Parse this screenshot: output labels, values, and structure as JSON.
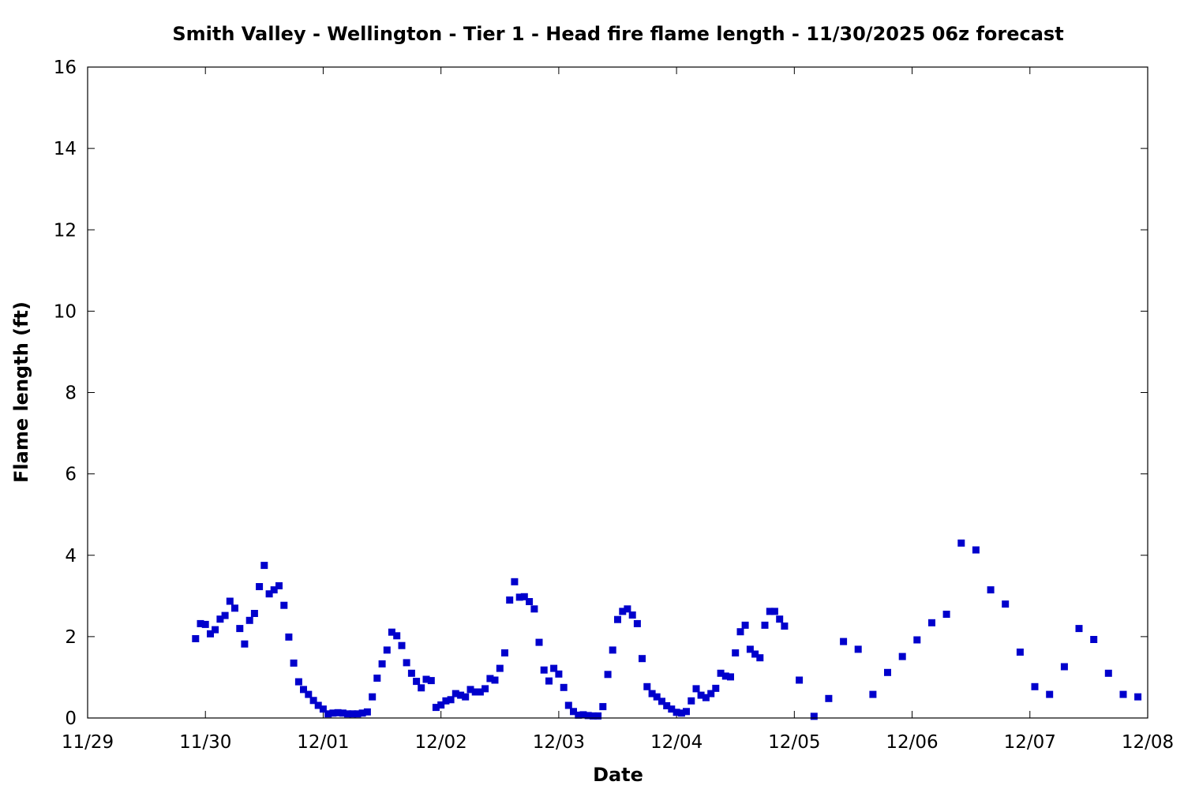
{
  "chart_data": {
    "type": "scatter",
    "title": "Smith Valley - Wellington - Tier 1 - Head fire flame length - 11/30/2025 06z forecast",
    "xlabel": "Date",
    "ylabel": "Flame length (ft)",
    "x_unit": "days since 11/29 00z",
    "xlim": [
      0,
      9
    ],
    "ylim": [
      0,
      16
    ],
    "x_tick_values": [
      0,
      1,
      2,
      3,
      4,
      5,
      6,
      7,
      8,
      9
    ],
    "x_tick_labels": [
      "11/29",
      "11/30",
      "12/01",
      "12/02",
      "12/03",
      "12/04",
      "12/05",
      "12/06",
      "12/07",
      "12/08"
    ],
    "y_tick_values": [
      0,
      2,
      4,
      6,
      8,
      10,
      12,
      14,
      16
    ],
    "y_tick_labels": [
      "0",
      "2",
      "4",
      "6",
      "8",
      "10",
      "12",
      "14",
      "16"
    ],
    "grid": false,
    "marker_color": "#0000cc",
    "series": [
      {
        "name": "Head fire flame length",
        "points": [
          [
            0.917,
            1.95
          ],
          [
            0.958,
            2.32
          ],
          [
            1.0,
            2.3
          ],
          [
            1.042,
            2.07
          ],
          [
            1.083,
            2.17
          ],
          [
            1.125,
            2.43
          ],
          [
            1.167,
            2.52
          ],
          [
            1.208,
            2.87
          ],
          [
            1.25,
            2.7
          ],
          [
            1.292,
            2.2
          ],
          [
            1.333,
            1.82
          ],
          [
            1.375,
            2.4
          ],
          [
            1.417,
            2.57
          ],
          [
            1.458,
            3.23
          ],
          [
            1.5,
            3.75
          ],
          [
            1.542,
            3.05
          ],
          [
            1.583,
            3.15
          ],
          [
            1.625,
            3.25
          ],
          [
            1.667,
            2.77
          ],
          [
            1.708,
            1.99
          ],
          [
            1.75,
            1.35
          ],
          [
            1.792,
            0.89
          ],
          [
            1.833,
            0.7
          ],
          [
            1.875,
            0.58
          ],
          [
            1.917,
            0.43
          ],
          [
            1.958,
            0.31
          ],
          [
            2.0,
            0.22
          ],
          [
            2.042,
            0.1
          ],
          [
            2.083,
            0.12
          ],
          [
            2.125,
            0.13
          ],
          [
            2.167,
            0.12
          ],
          [
            2.208,
            0.1
          ],
          [
            2.25,
            0.1
          ],
          [
            2.292,
            0.1
          ],
          [
            2.333,
            0.12
          ],
          [
            2.375,
            0.15
          ],
          [
            2.417,
            0.52
          ],
          [
            2.458,
            0.98
          ],
          [
            2.5,
            1.33
          ],
          [
            2.542,
            1.67
          ],
          [
            2.583,
            2.11
          ],
          [
            2.625,
            2.02
          ],
          [
            2.667,
            1.78
          ],
          [
            2.708,
            1.36
          ],
          [
            2.75,
            1.1
          ],
          [
            2.792,
            0.9
          ],
          [
            2.833,
            0.74
          ],
          [
            2.875,
            0.95
          ],
          [
            2.917,
            0.92
          ],
          [
            2.958,
            0.26
          ],
          [
            3.0,
            0.32
          ],
          [
            3.042,
            0.42
          ],
          [
            3.083,
            0.45
          ],
          [
            3.125,
            0.6
          ],
          [
            3.167,
            0.56
          ],
          [
            3.208,
            0.52
          ],
          [
            3.25,
            0.7
          ],
          [
            3.292,
            0.64
          ],
          [
            3.333,
            0.64
          ],
          [
            3.375,
            0.72
          ],
          [
            3.417,
            0.97
          ],
          [
            3.458,
            0.93
          ],
          [
            3.5,
            1.22
          ],
          [
            3.542,
            1.6
          ],
          [
            3.583,
            2.9
          ],
          [
            3.625,
            3.35
          ],
          [
            3.667,
            2.97
          ],
          [
            3.708,
            2.98
          ],
          [
            3.75,
            2.86
          ],
          [
            3.792,
            2.68
          ],
          [
            3.833,
            1.86
          ],
          [
            3.875,
            1.18
          ],
          [
            3.917,
            0.91
          ],
          [
            3.958,
            1.22
          ],
          [
            4.0,
            1.08
          ],
          [
            4.042,
            0.75
          ],
          [
            4.083,
            0.31
          ],
          [
            4.125,
            0.16
          ],
          [
            4.167,
            0.07
          ],
          [
            4.208,
            0.08
          ],
          [
            4.25,
            0.06
          ],
          [
            4.292,
            0.05
          ],
          [
            4.333,
            0.05
          ],
          [
            4.375,
            0.28
          ],
          [
            4.417,
            1.07
          ],
          [
            4.458,
            1.67
          ],
          [
            4.5,
            2.42
          ],
          [
            4.542,
            2.62
          ],
          [
            4.583,
            2.68
          ],
          [
            4.625,
            2.53
          ],
          [
            4.667,
            2.32
          ],
          [
            4.708,
            1.46
          ],
          [
            4.75,
            0.77
          ],
          [
            4.792,
            0.6
          ],
          [
            4.833,
            0.52
          ],
          [
            4.875,
            0.41
          ],
          [
            4.917,
            0.3
          ],
          [
            4.958,
            0.22
          ],
          [
            5.0,
            0.14
          ],
          [
            5.042,
            0.12
          ],
          [
            5.083,
            0.16
          ],
          [
            5.125,
            0.42
          ],
          [
            5.167,
            0.72
          ],
          [
            5.208,
            0.56
          ],
          [
            5.25,
            0.5
          ],
          [
            5.292,
            0.6
          ],
          [
            5.333,
            0.73
          ],
          [
            5.375,
            1.1
          ],
          [
            5.417,
            1.03
          ],
          [
            5.458,
            1.01
          ],
          [
            5.5,
            1.6
          ],
          [
            5.542,
            2.12
          ],
          [
            5.583,
            2.28
          ],
          [
            5.625,
            1.69
          ],
          [
            5.667,
            1.57
          ],
          [
            5.708,
            1.48
          ],
          [
            5.75,
            2.28
          ],
          [
            5.792,
            2.62
          ],
          [
            5.833,
            2.62
          ],
          [
            5.875,
            2.43
          ],
          [
            5.917,
            2.26
          ],
          [
            6.042,
            0.93
          ],
          [
            6.167,
            0.04
          ],
          [
            6.292,
            0.48
          ],
          [
            6.417,
            1.88
          ],
          [
            6.542,
            1.69
          ],
          [
            6.667,
            0.58
          ],
          [
            6.792,
            1.12
          ],
          [
            6.917,
            1.51
          ],
          [
            7.042,
            1.92
          ],
          [
            7.167,
            2.34
          ],
          [
            7.292,
            2.55
          ],
          [
            7.417,
            4.3
          ],
          [
            7.542,
            4.13
          ],
          [
            7.667,
            3.15
          ],
          [
            7.792,
            2.8
          ],
          [
            7.917,
            1.62
          ],
          [
            8.042,
            0.77
          ],
          [
            8.167,
            0.58
          ],
          [
            8.292,
            1.26
          ],
          [
            8.417,
            2.2
          ],
          [
            8.542,
            1.93
          ],
          [
            8.667,
            1.1
          ],
          [
            8.792,
            0.58
          ],
          [
            8.917,
            0.52
          ]
        ]
      }
    ]
  }
}
